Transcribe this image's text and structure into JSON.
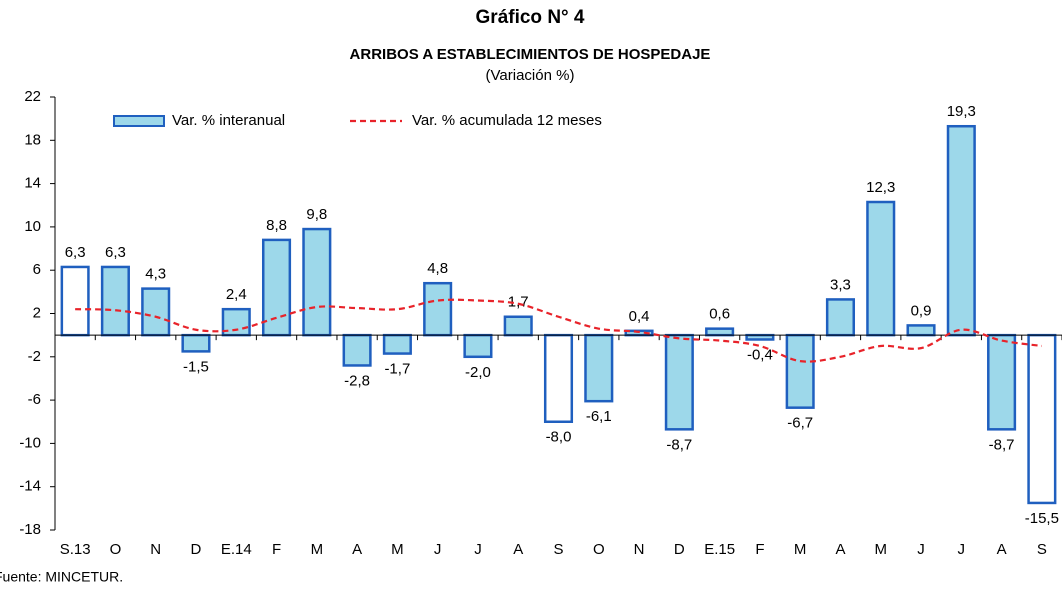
{
  "chart_data": {
    "type": "bar",
    "title": "Gráfico N° 4",
    "subtitle": "ARRIBOS A ESTABLECIMIENTOS DE HOSPEDAJE",
    "unit_note": "(Variación %)",
    "source": "Fuente: MINCETUR.",
    "categories": [
      "S.13",
      "O",
      "N",
      "D",
      "E.14",
      "F",
      "M",
      "A",
      "M",
      "J",
      "J",
      "A",
      "S",
      "O",
      "N",
      "D",
      "E.15",
      "F",
      "M",
      "A",
      "M",
      "J",
      "J",
      "A",
      "S"
    ],
    "series": [
      {
        "name": "Var. % interanual",
        "type": "bar",
        "color": "#9dd8ea",
        "edge_color": "#1f5fbf",
        "colors": [
          "#ffffff",
          "#9dd8ea",
          "#9dd8ea",
          "#9dd8ea",
          "#9dd8ea",
          "#9dd8ea",
          "#9dd8ea",
          "#9dd8ea",
          "#9dd8ea",
          "#9dd8ea",
          "#9dd8ea",
          "#9dd8ea",
          "#ffffff",
          "#9dd8ea",
          "#9dd8ea",
          "#9dd8ea",
          "#9dd8ea",
          "#9dd8ea",
          "#9dd8ea",
          "#9dd8ea",
          "#9dd8ea",
          "#9dd8ea",
          "#9dd8ea",
          "#9dd8ea",
          "#ffffff"
        ],
        "values": [
          6.3,
          6.3,
          4.3,
          -1.5,
          2.4,
          8.8,
          9.8,
          -2.8,
          -1.7,
          4.8,
          -2.0,
          1.7,
          -8.0,
          -6.1,
          0.4,
          -8.7,
          0.6,
          -0.4,
          -6.7,
          3.3,
          12.3,
          0.9,
          19.3,
          -8.7,
          -15.5
        ],
        "value_labels": [
          "6,3",
          "6,3",
          "4,3",
          "-1,5",
          "2,4",
          "8,8",
          "9,8",
          "-2,8",
          "-1,7",
          "4,8",
          "-2,0",
          "1,7",
          "-8,0",
          "-6,1",
          "0,4",
          "-8,7",
          "0,6",
          "-0,4",
          "-6,7",
          "3,3",
          "12,3",
          "0,9",
          "19,3",
          "-8,7",
          "-15,5"
        ]
      },
      {
        "name": "Var. % acumulada 12 meses",
        "type": "line",
        "color": "#e8232a",
        "values": [
          2.4,
          2.3,
          1.7,
          0.5,
          0.5,
          1.6,
          2.6,
          2.5,
          2.4,
          3.2,
          3.2,
          2.9,
          1.7,
          0.6,
          0.3,
          -0.3,
          -0.5,
          -1.0,
          -2.4,
          -2.0,
          -1.0,
          -1.2,
          0.5,
          -0.5,
          -1.0
        ]
      }
    ],
    "ylim": [
      -18,
      22
    ],
    "yticks": [
      -18,
      -14,
      -10,
      -6,
      -2,
      2,
      6,
      10,
      14,
      18,
      22
    ],
    "grid": false
  }
}
